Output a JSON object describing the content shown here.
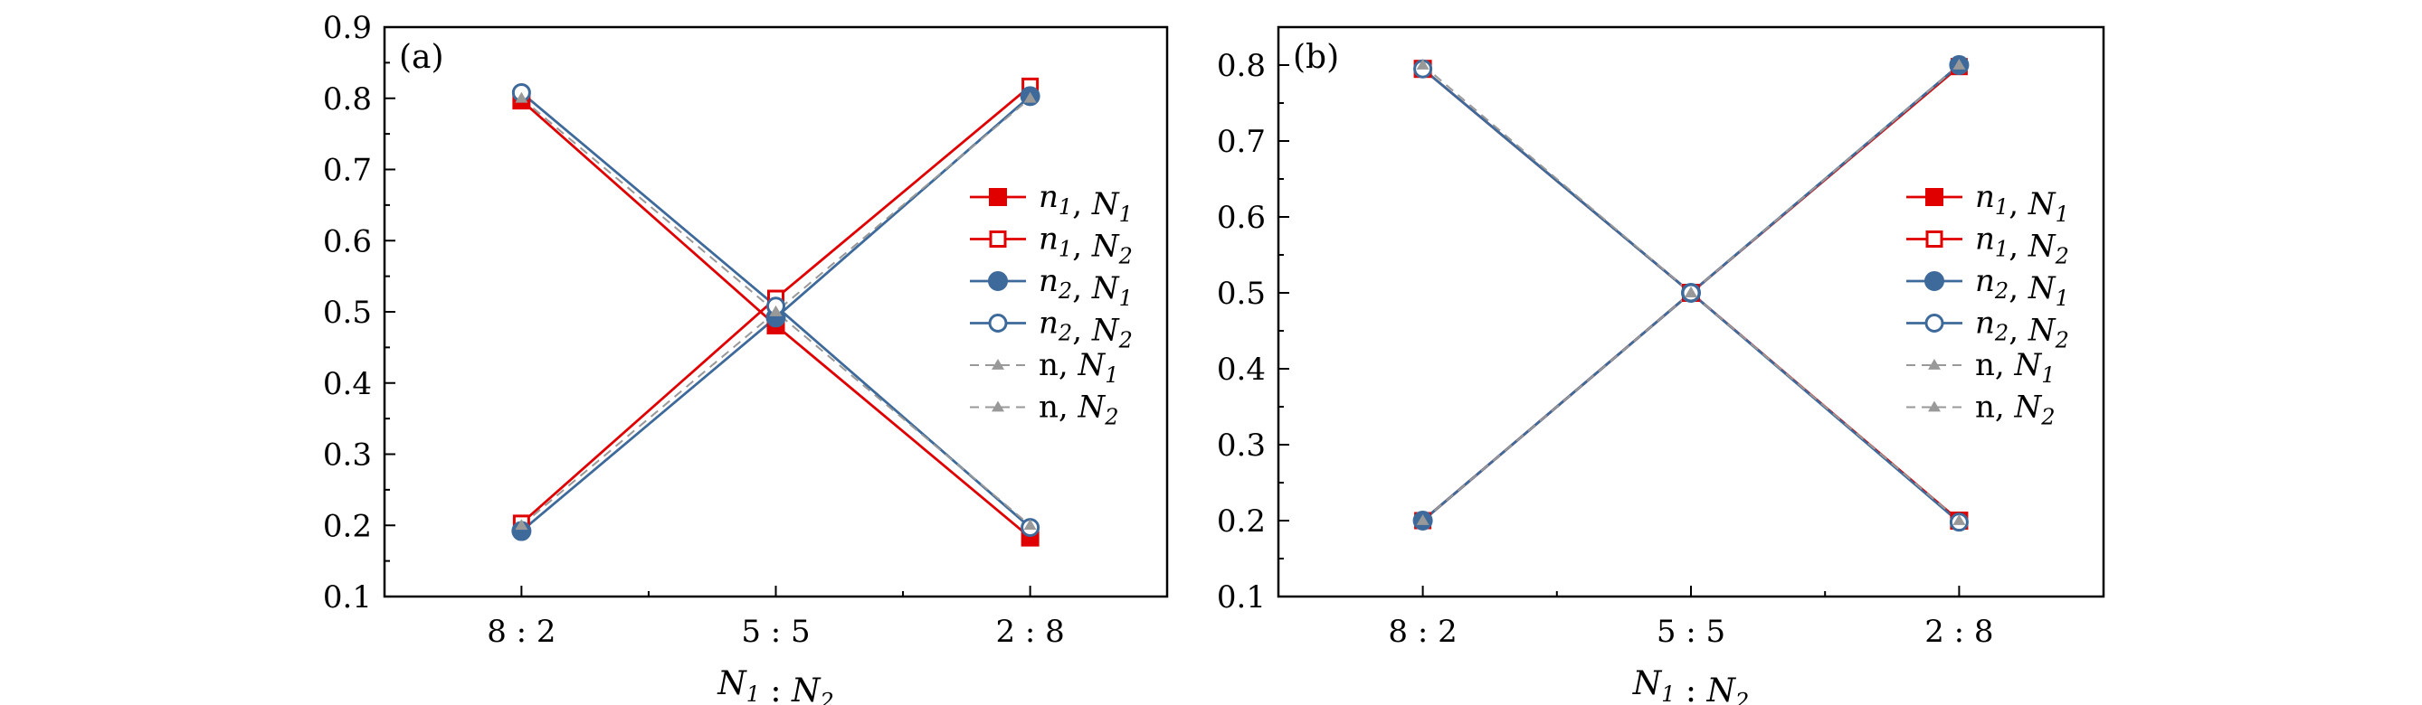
{
  "chart_data": [
    {
      "type": "line",
      "panel_label": "(a)",
      "categories": [
        "8 : 2",
        "5 : 5",
        "2 : 8"
      ],
      "xlabel": "N1 : N2",
      "ylim": [
        0.1,
        0.9
      ],
      "yticks": [
        0.1,
        0.2,
        0.3,
        0.4,
        0.5,
        0.6,
        0.7,
        0.8,
        0.9
      ],
      "legend_position": "right",
      "series": [
        {
          "name": "n1, N1",
          "color": "#e00000",
          "marker": "square-filled",
          "dashed": false,
          "values": [
            0.797,
            0.481,
            0.183
          ]
        },
        {
          "name": "n1, N2",
          "color": "#e00000",
          "marker": "square-open",
          "dashed": false,
          "values": [
            0.203,
            0.519,
            0.817
          ]
        },
        {
          "name": "n2, N1",
          "color": "#3d6a9a",
          "marker": "circle-filled",
          "dashed": false,
          "values": [
            0.192,
            0.492,
            0.803
          ]
        },
        {
          "name": "n2, N2",
          "color": "#3d6a9a",
          "marker": "circle-open",
          "dashed": false,
          "values": [
            0.808,
            0.508,
            0.197
          ]
        },
        {
          "name": "n, N1",
          "color": "#999999",
          "marker": "triangle-filled",
          "dashed": true,
          "values": [
            0.2,
            0.5,
            0.8
          ]
        },
        {
          "name": "n, N2",
          "color": "#999999",
          "marker": "triangle-filled",
          "dashed": true,
          "values": [
            0.8,
            0.5,
            0.2
          ]
        }
      ]
    },
    {
      "type": "line",
      "panel_label": "(b)",
      "categories": [
        "8 : 2",
        "5 : 5",
        "2 : 8"
      ],
      "xlabel": "N1 : N2",
      "ylim": [
        0.1,
        0.85
      ],
      "yticks": [
        0.1,
        0.2,
        0.3,
        0.4,
        0.5,
        0.6,
        0.7,
        0.8
      ],
      "legend_position": "right",
      "series": [
        {
          "name": "n1, N1",
          "color": "#e00000",
          "marker": "square-filled",
          "dashed": false,
          "values": [
            0.795,
            0.5,
            0.2
          ]
        },
        {
          "name": "n1, N2",
          "color": "#e00000",
          "marker": "square-open",
          "dashed": false,
          "values": [
            0.2,
            0.5,
            0.798
          ]
        },
        {
          "name": "n2, N1",
          "color": "#3d6a9a",
          "marker": "circle-filled",
          "dashed": false,
          "values": [
            0.2,
            0.5,
            0.8
          ]
        },
        {
          "name": "n2, N2",
          "color": "#3d6a9a",
          "marker": "circle-open",
          "dashed": false,
          "values": [
            0.795,
            0.5,
            0.198
          ]
        },
        {
          "name": "n, N1",
          "color": "#999999",
          "marker": "triangle-filled",
          "dashed": true,
          "values": [
            0.2,
            0.5,
            0.8
          ]
        },
        {
          "name": "n, N2",
          "color": "#999999",
          "marker": "triangle-filled",
          "dashed": true,
          "values": [
            0.8,
            0.5,
            0.2
          ]
        }
      ]
    }
  ]
}
